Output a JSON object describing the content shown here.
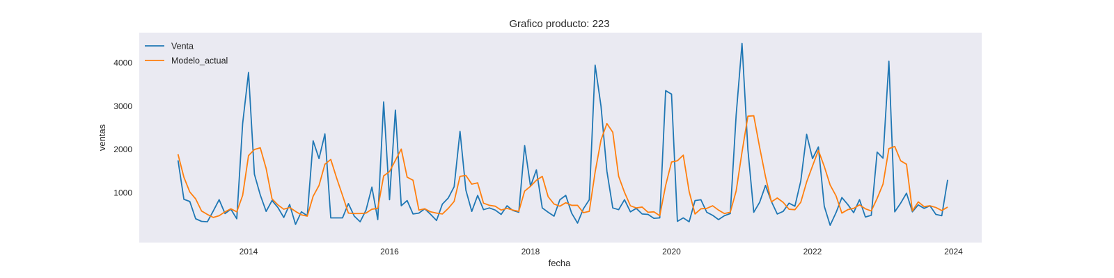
{
  "chart_data": {
    "type": "line",
    "title": "Grafico producto: 223",
    "xlabel": "fecha",
    "ylabel": "ventas",
    "x_start": "2013-01",
    "x_end": "2023-12",
    "xlim": [
      2012.45,
      2024.4
    ],
    "ylim": [
      -150,
      4700
    ],
    "x_ticks": [
      2014,
      2016,
      2018,
      2020,
      2022,
      2024
    ],
    "y_ticks": [
      1000,
      2000,
      3000,
      4000
    ],
    "grid": false,
    "legend_position": "top-left",
    "background": "#eaeaf2",
    "series": [
      {
        "name": "Venta",
        "color": "#1f77b4",
        "values": [
          1750,
          850,
          800,
          400,
          340,
          330,
          580,
          840,
          520,
          620,
          400,
          2600,
          3780,
          1430,
          950,
          570,
          820,
          660,
          430,
          730,
          270,
          560,
          470,
          2200,
          1790,
          2360,
          420,
          420,
          420,
          750,
          460,
          330,
          600,
          1130,
          380,
          3100,
          840,
          2910,
          700,
          820,
          510,
          530,
          630,
          500,
          360,
          740,
          880,
          1140,
          2420,
          1060,
          570,
          940,
          610,
          650,
          600,
          500,
          700,
          590,
          550,
          2090,
          1150,
          1530,
          650,
          550,
          460,
          840,
          940,
          530,
          300,
          630,
          840,
          3950,
          3000,
          1500,
          650,
          610,
          840,
          560,
          640,
          510,
          500,
          410,
          420,
          3360,
          3280,
          340,
          420,
          330,
          820,
          840,
          550,
          480,
          380,
          470,
          520,
          2790,
          4450,
          2000,
          550,
          780,
          1170,
          800,
          510,
          570,
          760,
          690,
          1270,
          2350,
          1790,
          2060,
          690,
          250,
          540,
          890,
          730,
          540,
          840,
          440,
          480,
          1940,
          1800,
          4040,
          560,
          760,
          990,
          560,
          720,
          640,
          700,
          500,
          470,
          1300
        ]
      },
      {
        "name": "Modelo_actual",
        "color": "#ff7f0e",
        "values": [
          1890,
          1360,
          1020,
          860,
          580,
          500,
          430,
          470,
          560,
          630,
          560,
          940,
          1860,
          2000,
          2040,
          1560,
          860,
          720,
          620,
          660,
          570,
          490,
          460,
          920,
          1170,
          1660,
          1770,
          1340,
          940,
          530,
          520,
          520,
          530,
          620,
          640,
          1390,
          1490,
          1750,
          2010,
          1360,
          1290,
          600,
          630,
          560,
          530,
          510,
          640,
          800,
          1380,
          1400,
          1200,
          1230,
          760,
          710,
          690,
          600,
          640,
          600,
          570,
          1040,
          1150,
          1290,
          1380,
          910,
          740,
          690,
          770,
          710,
          710,
          540,
          570,
          1480,
          2220,
          2600,
          2400,
          1380,
          1010,
          700,
          650,
          670,
          550,
          560,
          470,
          1170,
          1710,
          1740,
          1870,
          1030,
          510,
          630,
          640,
          700,
          600,
          520,
          550,
          1040,
          1940,
          2770,
          2780,
          2050,
          1370,
          790,
          880,
          780,
          620,
          610,
          780,
          1250,
          1620,
          1980,
          1610,
          1180,
          930,
          530,
          610,
          640,
          720,
          630,
          580,
          870,
          1200,
          2020,
          2070,
          1740,
          1660,
          580,
          790,
          680,
          700,
          660,
          590,
          670
        ]
      }
    ]
  }
}
